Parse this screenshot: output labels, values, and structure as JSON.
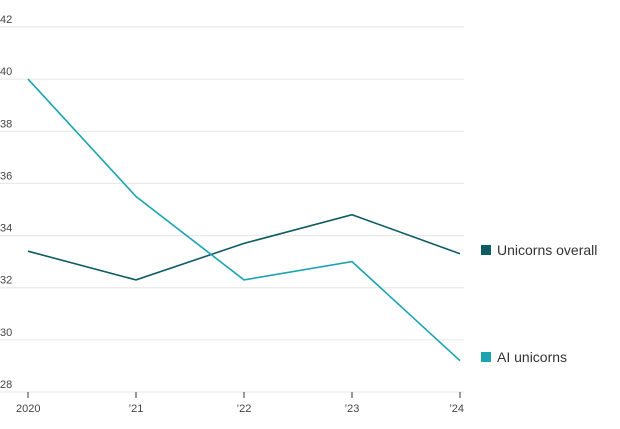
{
  "chart_data": {
    "type": "line",
    "title": "",
    "xlabel": "",
    "ylabel": "",
    "categories": [
      "2020",
      "’21",
      "’22",
      "’23",
      "’24"
    ],
    "ylim": [
      28,
      42
    ],
    "yticks": [
      28,
      30,
      32,
      34,
      36,
      38,
      40,
      42
    ],
    "grid": true,
    "legend_position": "right",
    "series": [
      {
        "name": "Unicorns overall",
        "color": "#0d5c63",
        "values": [
          33.4,
          32.3,
          33.7,
          34.8,
          33.3
        ]
      },
      {
        "name": "AI unicorns",
        "color": "#1aa3b0",
        "values": [
          40.0,
          35.5,
          32.3,
          33.0,
          29.2
        ]
      }
    ]
  }
}
